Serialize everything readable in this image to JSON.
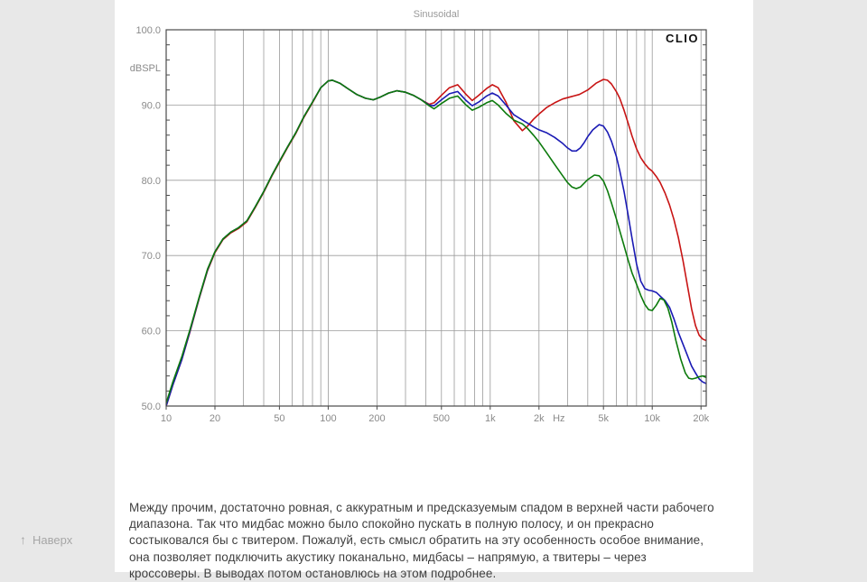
{
  "page": {
    "background_color": "#e8e8e8",
    "panel_color": "#ffffff"
  },
  "back_to_top": {
    "label": "Наверх",
    "icon": "up-arrow",
    "arrow_glyph": "↑"
  },
  "article": {
    "paragraph": "Между прочим, достаточно ровная, с аккуратным и предсказуемым спадом в верхней части рабочего диапазона. Так что мидбас можно было спокойно пускать в полную полосу, и он прекрасно состыковался бы с твитером. Пожалуй, есть смысл обратить на эту особенность особое внимание, она позволяет подключить акустику поканально, мидбасы – напрямую, а твитеры – через кроссоверы. В выводах потом остановлюсь на этом подробнее."
  },
  "chart_data": {
    "type": "line",
    "title": "Sinusoidal",
    "brand": "CLIO",
    "ylabel": "dBSPL",
    "x_unit": "Hz",
    "x_scale": "log",
    "xlim": [
      10,
      21500
    ],
    "ylim": [
      50,
      100
    ],
    "grid": true,
    "legend": "none",
    "title_color": "#9a9a9a",
    "axis_label_color": "#8a8a8a",
    "grid_color": "#9a9a9a",
    "frame_color": "#4a4a4a",
    "y_major_ticks": [
      100,
      90,
      80,
      70,
      60,
      50
    ],
    "y_tick_labels": [
      "100.0",
      "90.0",
      "80.0",
      "70.0",
      "60.0",
      "50.0"
    ],
    "y_minor_step": 2,
    "x_grid_frequencies": [
      20,
      30,
      40,
      50,
      60,
      70,
      80,
      90,
      100,
      200,
      300,
      400,
      500,
      600,
      700,
      800,
      900,
      1000,
      2000,
      3000,
      4000,
      5000,
      6000,
      7000,
      8000,
      9000,
      10000,
      20000
    ],
    "x_tick_labels": [
      {
        "f": 10,
        "label": "10"
      },
      {
        "f": 20,
        "label": "20"
      },
      {
        "f": 50,
        "label": "50"
      },
      {
        "f": 100,
        "label": "100"
      },
      {
        "f": 200,
        "label": "200"
      },
      {
        "f": 500,
        "label": "500"
      },
      {
        "f": 1000,
        "label": "1k"
      },
      {
        "f": 2000,
        "label": "2k"
      },
      {
        "f": 5000,
        "label": "5k"
      },
      {
        "f": 10000,
        "label": "10k"
      },
      {
        "f": 20000,
        "label": "20k"
      }
    ],
    "series": [
      {
        "name": "red-curve",
        "color": "#c81414",
        "points": [
          [
            10,
            50.0
          ],
          [
            11,
            52.8
          ],
          [
            12.5,
            56.2
          ],
          [
            14,
            59.8
          ],
          [
            16,
            64.3
          ],
          [
            18,
            68.0
          ],
          [
            20,
            70.4
          ],
          [
            22.4,
            72.1
          ],
          [
            25,
            73.0
          ],
          [
            28,
            73.6
          ],
          [
            31.5,
            74.5
          ],
          [
            35.5,
            76.4
          ],
          [
            40,
            78.4
          ],
          [
            45,
            80.6
          ],
          [
            50,
            82.4
          ],
          [
            56,
            84.3
          ],
          [
            63,
            86.2
          ],
          [
            71,
            88.4
          ],
          [
            80,
            90.3
          ],
          [
            90,
            92.3
          ],
          [
            100,
            93.2
          ],
          [
            106,
            93.3
          ],
          [
            118,
            92.9
          ],
          [
            132,
            92.2
          ],
          [
            150,
            91.4
          ],
          [
            170,
            90.9
          ],
          [
            190,
            90.7
          ],
          [
            212,
            91.1
          ],
          [
            236,
            91.6
          ],
          [
            265,
            91.9
          ],
          [
            300,
            91.7
          ],
          [
            335,
            91.3
          ],
          [
            375,
            90.7
          ],
          [
            420,
            90.1
          ],
          [
            450,
            90.3
          ],
          [
            500,
            91.3
          ],
          [
            560,
            92.3
          ],
          [
            630,
            92.7
          ],
          [
            710,
            91.4
          ],
          [
            775,
            90.6
          ],
          [
            850,
            91.3
          ],
          [
            950,
            92.2
          ],
          [
            1030,
            92.7
          ],
          [
            1120,
            92.3
          ],
          [
            1250,
            90.4
          ],
          [
            1400,
            87.9
          ],
          [
            1580,
            86.6
          ],
          [
            1700,
            87.2
          ],
          [
            1850,
            88.1
          ],
          [
            2000,
            88.8
          ],
          [
            2240,
            89.7
          ],
          [
            2500,
            90.3
          ],
          [
            2800,
            90.8
          ],
          [
            3150,
            91.1
          ],
          [
            3550,
            91.4
          ],
          [
            4000,
            92.0
          ],
          [
            4500,
            92.9
          ],
          [
            5000,
            93.4
          ],
          [
            5300,
            93.3
          ],
          [
            5600,
            92.8
          ],
          [
            6000,
            91.8
          ],
          [
            6300,
            90.9
          ],
          [
            6700,
            89.3
          ],
          [
            7100,
            87.6
          ],
          [
            7500,
            85.9
          ],
          [
            8000,
            84.2
          ],
          [
            8500,
            83.0
          ],
          [
            9000,
            82.2
          ],
          [
            9500,
            81.6
          ],
          [
            10000,
            81.2
          ],
          [
            10600,
            80.5
          ],
          [
            11200,
            79.7
          ],
          [
            12000,
            78.3
          ],
          [
            12800,
            76.7
          ],
          [
            13600,
            74.8
          ],
          [
            14500,
            72.4
          ],
          [
            15500,
            69.3
          ],
          [
            16500,
            66.0
          ],
          [
            17500,
            62.9
          ],
          [
            18500,
            60.7
          ],
          [
            19500,
            59.4
          ],
          [
            20500,
            58.9
          ],
          [
            21500,
            58.7
          ]
        ]
      },
      {
        "name": "blue-curve",
        "color": "#1a1ab4",
        "points": [
          [
            10,
            50.0
          ],
          [
            11,
            52.8
          ],
          [
            12.5,
            56.2
          ],
          [
            14,
            59.9
          ],
          [
            16,
            64.4
          ],
          [
            18,
            68.1
          ],
          [
            20,
            70.5
          ],
          [
            22.4,
            72.2
          ],
          [
            25,
            73.1
          ],
          [
            28,
            73.7
          ],
          [
            31.5,
            74.6
          ],
          [
            35.5,
            76.5
          ],
          [
            40,
            78.5
          ],
          [
            45,
            80.7
          ],
          [
            50,
            82.5
          ],
          [
            56,
            84.4
          ],
          [
            63,
            86.3
          ],
          [
            71,
            88.5
          ],
          [
            80,
            90.4
          ],
          [
            90,
            92.3
          ],
          [
            100,
            93.2
          ],
          [
            106,
            93.3
          ],
          [
            118,
            92.9
          ],
          [
            132,
            92.2
          ],
          [
            150,
            91.4
          ],
          [
            170,
            90.9
          ],
          [
            190,
            90.7
          ],
          [
            212,
            91.1
          ],
          [
            236,
            91.6
          ],
          [
            265,
            91.9
          ],
          [
            300,
            91.7
          ],
          [
            335,
            91.3
          ],
          [
            375,
            90.7
          ],
          [
            420,
            90.0
          ],
          [
            450,
            89.9
          ],
          [
            500,
            90.7
          ],
          [
            560,
            91.5
          ],
          [
            630,
            91.8
          ],
          [
            710,
            90.6
          ],
          [
            775,
            89.9
          ],
          [
            850,
            90.4
          ],
          [
            950,
            91.2
          ],
          [
            1030,
            91.6
          ],
          [
            1120,
            91.2
          ],
          [
            1250,
            90.0
          ],
          [
            1400,
            88.7
          ],
          [
            1580,
            88.0
          ],
          [
            1700,
            87.6
          ],
          [
            1850,
            87.1
          ],
          [
            2000,
            86.7
          ],
          [
            2240,
            86.3
          ],
          [
            2500,
            85.7
          ],
          [
            2800,
            84.9
          ],
          [
            3000,
            84.3
          ],
          [
            3200,
            83.9
          ],
          [
            3400,
            83.9
          ],
          [
            3600,
            84.3
          ],
          [
            3800,
            85.0
          ],
          [
            4000,
            85.8
          ],
          [
            4300,
            86.7
          ],
          [
            4700,
            87.4
          ],
          [
            5000,
            87.2
          ],
          [
            5300,
            86.4
          ],
          [
            5600,
            85.2
          ],
          [
            6000,
            83.2
          ],
          [
            6300,
            81.3
          ],
          [
            6700,
            78.5
          ],
          [
            7100,
            75.4
          ],
          [
            7500,
            72.3
          ],
          [
            8000,
            68.9
          ],
          [
            8500,
            66.6
          ],
          [
            9000,
            65.6
          ],
          [
            9500,
            65.4
          ],
          [
            10000,
            65.3
          ],
          [
            10600,
            65.1
          ],
          [
            11200,
            64.6
          ],
          [
            12000,
            64.0
          ],
          [
            12800,
            63.1
          ],
          [
            13600,
            61.6
          ],
          [
            14500,
            59.8
          ],
          [
            15500,
            58.2
          ],
          [
            16500,
            56.7
          ],
          [
            17500,
            55.3
          ],
          [
            18500,
            54.4
          ],
          [
            19500,
            53.6
          ],
          [
            20500,
            53.2
          ],
          [
            21500,
            53.0
          ]
        ]
      },
      {
        "name": "green-curve",
        "color": "#0c7a0c",
        "points": [
          [
            10,
            50.4
          ],
          [
            11,
            53.2
          ],
          [
            12.5,
            56.6
          ],
          [
            14,
            60.1
          ],
          [
            16,
            64.5
          ],
          [
            18,
            68.2
          ],
          [
            20,
            70.5
          ],
          [
            22.4,
            72.2
          ],
          [
            25,
            73.1
          ],
          [
            28,
            73.7
          ],
          [
            31.5,
            74.6
          ],
          [
            35.5,
            76.5
          ],
          [
            40,
            78.5
          ],
          [
            45,
            80.7
          ],
          [
            50,
            82.5
          ],
          [
            56,
            84.4
          ],
          [
            63,
            86.3
          ],
          [
            71,
            88.5
          ],
          [
            80,
            90.4
          ],
          [
            90,
            92.3
          ],
          [
            100,
            93.2
          ],
          [
            106,
            93.3
          ],
          [
            118,
            92.9
          ],
          [
            132,
            92.2
          ],
          [
            150,
            91.4
          ],
          [
            170,
            90.9
          ],
          [
            190,
            90.7
          ],
          [
            212,
            91.1
          ],
          [
            236,
            91.6
          ],
          [
            265,
            91.9
          ],
          [
            300,
            91.7
          ],
          [
            335,
            91.3
          ],
          [
            375,
            90.7
          ],
          [
            420,
            89.9
          ],
          [
            450,
            89.5
          ],
          [
            500,
            90.2
          ],
          [
            560,
            90.9
          ],
          [
            630,
            91.2
          ],
          [
            710,
            90.0
          ],
          [
            775,
            89.3
          ],
          [
            850,
            89.7
          ],
          [
            950,
            90.3
          ],
          [
            1030,
            90.6
          ],
          [
            1120,
            90.0
          ],
          [
            1250,
            88.9
          ],
          [
            1400,
            88.0
          ],
          [
            1580,
            87.5
          ],
          [
            1700,
            86.9
          ],
          [
            1850,
            86.0
          ],
          [
            2000,
            85.1
          ],
          [
            2240,
            83.6
          ],
          [
            2500,
            82.1
          ],
          [
            2800,
            80.6
          ],
          [
            3000,
            79.7
          ],
          [
            3200,
            79.1
          ],
          [
            3400,
            78.9
          ],
          [
            3600,
            79.1
          ],
          [
            3800,
            79.6
          ],
          [
            4000,
            80.1
          ],
          [
            4400,
            80.7
          ],
          [
            4700,
            80.6
          ],
          [
            5000,
            79.9
          ],
          [
            5300,
            78.6
          ],
          [
            5600,
            77.0
          ],
          [
            6000,
            74.9
          ],
          [
            6300,
            73.3
          ],
          [
            6700,
            71.3
          ],
          [
            7100,
            69.4
          ],
          [
            7500,
            67.7
          ],
          [
            8000,
            66.2
          ],
          [
            8500,
            64.7
          ],
          [
            9000,
            63.5
          ],
          [
            9500,
            62.8
          ],
          [
            10000,
            62.7
          ],
          [
            10600,
            63.4
          ],
          [
            11200,
            64.3
          ],
          [
            11800,
            64.1
          ],
          [
            12500,
            63.0
          ],
          [
            13200,
            61.2
          ],
          [
            14000,
            58.7
          ],
          [
            15000,
            56.2
          ],
          [
            16000,
            54.4
          ],
          [
            16800,
            53.7
          ],
          [
            17600,
            53.6
          ],
          [
            18500,
            53.7
          ],
          [
            19500,
            53.9
          ],
          [
            20500,
            54.0
          ],
          [
            21500,
            53.8
          ]
        ]
      }
    ]
  }
}
